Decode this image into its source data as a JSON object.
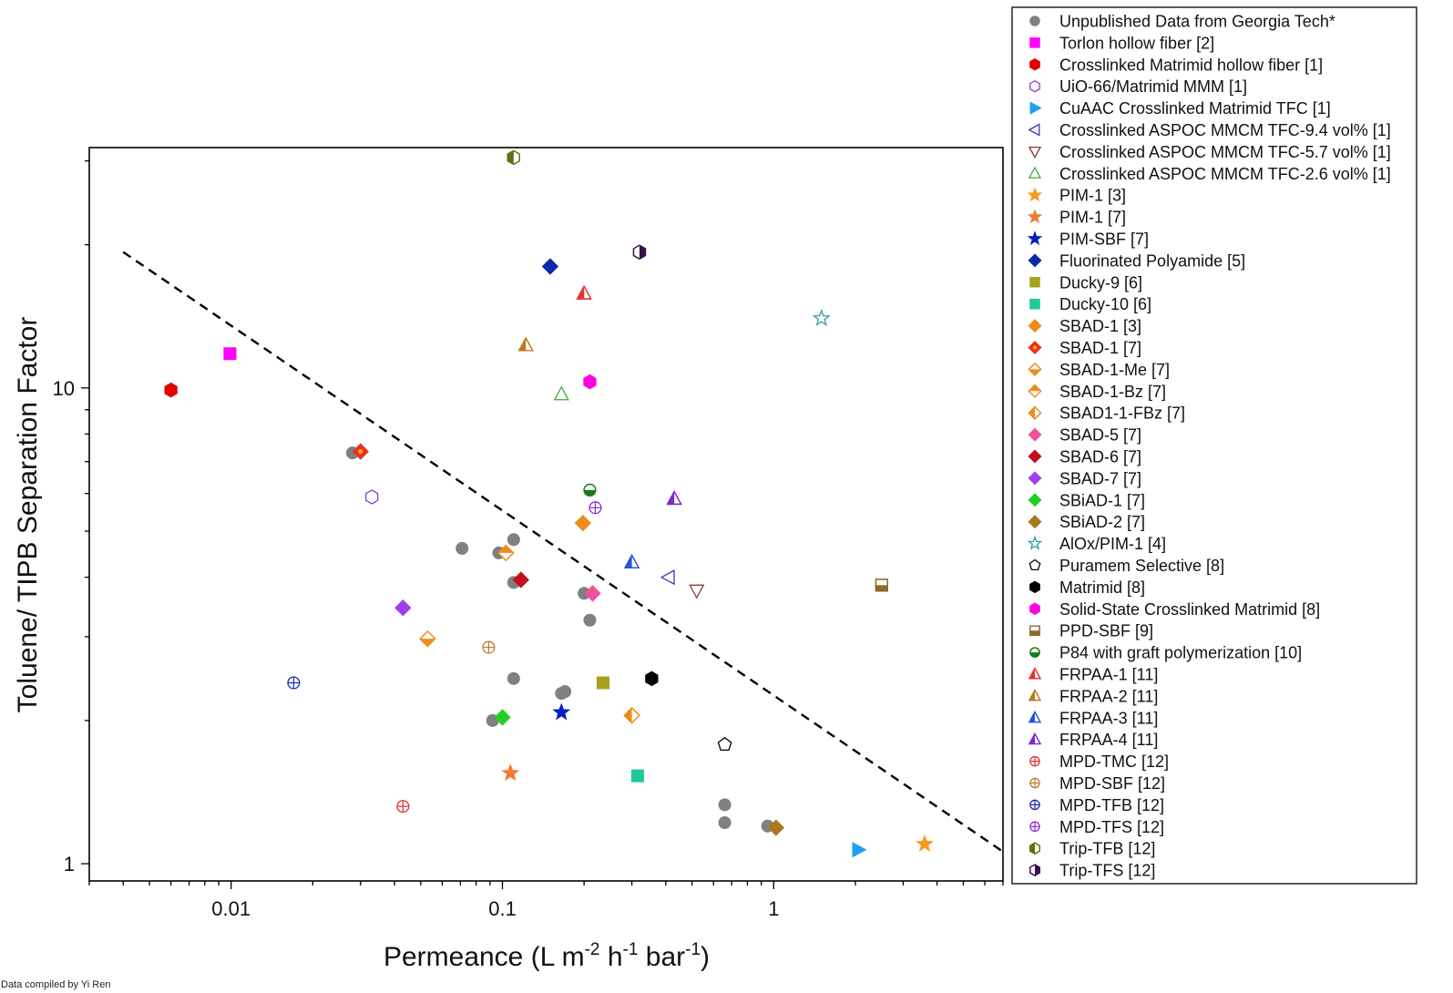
{
  "chart_data": {
    "type": "scatter",
    "xscale": "log",
    "yscale": "log",
    "xlim": [
      0.003,
      7
    ],
    "ylim": [
      0.92,
      32
    ],
    "ylabel": "Toluene/ TIPB Separation Factor",
    "xlabel": {
      "parts": [
        "Permeance (L m",
        "-2",
        " h",
        "-1",
        " bar",
        "-1",
        ")"
      ]
    },
    "xticks": [
      {
        "value": 0.01,
        "label": "0.01"
      },
      {
        "value": 0.1,
        "label": "0.1"
      },
      {
        "value": 1,
        "label": "1"
      }
    ],
    "yticks": [
      {
        "value": 1,
        "label": "1"
      },
      {
        "value": 10,
        "label": "10"
      }
    ],
    "trendline": {
      "style": "dashed",
      "points": [
        [
          0.004,
          19.3
        ],
        [
          7,
          1.06
        ]
      ]
    },
    "credit": "Data compiled by Yi Ren",
    "series": [
      {
        "name": "Unpublished Data from Georgia Tech*",
        "marker": "circle",
        "fill": "full",
        "color": "#808080",
        "points": [
          [
            0.028,
            7.3
          ],
          [
            0.071,
            4.6
          ],
          [
            0.097,
            4.5
          ],
          [
            0.11,
            4.8
          ],
          [
            0.11,
            3.9
          ],
          [
            0.11,
            2.45
          ],
          [
            0.092,
            2.0
          ],
          [
            0.165,
            2.28
          ],
          [
            0.17,
            2.3
          ],
          [
            0.2,
            3.7
          ],
          [
            0.21,
            3.25
          ],
          [
            0.66,
            1.33
          ],
          [
            0.66,
            1.22
          ],
          [
            0.95,
            1.2
          ]
        ]
      },
      {
        "name": "Torlon hollow fiber [2]",
        "marker": "square",
        "fill": "full",
        "color": "#ff00ff",
        "points": [
          [
            0.0099,
            11.8
          ]
        ]
      },
      {
        "name": "Crosslinked Matrimid hollow fiber [1]",
        "marker": "hexagon",
        "fill": "full",
        "color": "#e50000",
        "points": [
          [
            0.006,
            9.9
          ]
        ]
      },
      {
        "name": "UiO-66/Matrimid MMM [1]",
        "marker": "hexagon",
        "fill": "none",
        "color": "#8b3fd1",
        "points": [
          [
            0.033,
            5.9
          ]
        ]
      },
      {
        "name": "CuAAC Crosslinked Matrimid TFC [1]",
        "marker": "triangle-right",
        "fill": "full",
        "color": "#1e9ff2",
        "points": [
          [
            2.05,
            1.07
          ]
        ]
      },
      {
        "name": "Crosslinked ASPOC MMCM TFC-9.4 vol% [1]",
        "marker": "triangle-left",
        "fill": "none",
        "color": "#3f35b5",
        "points": [
          [
            0.41,
            4.0
          ]
        ]
      },
      {
        "name": "Crosslinked ASPOC MMCM TFC-5.7 vol% [1]",
        "marker": "triangle-down",
        "fill": "none",
        "color": "#8b3a3a",
        "points": [
          [
            0.52,
            3.75
          ]
        ]
      },
      {
        "name": "Crosslinked ASPOC MMCM TFC-2.6 vol% [1]",
        "marker": "triangle-up",
        "fill": "none",
        "color": "#3aaa35",
        "points": [
          [
            0.165,
            9.7
          ]
        ]
      },
      {
        "name": "PIM-1 [3]",
        "marker": "star",
        "fill": "full",
        "color": "#f59a23",
        "points": [
          [
            3.6,
            1.1
          ]
        ]
      },
      {
        "name": "PIM-1 [7]",
        "marker": "star",
        "fill": "full",
        "color": "#f07a30",
        "points": [
          [
            0.107,
            1.55
          ]
        ]
      },
      {
        "name": "PIM-SBF [7]",
        "marker": "star",
        "fill": "full",
        "color": "#0b1fbf",
        "points": [
          [
            0.165,
            2.08
          ]
        ]
      },
      {
        "name": "Fluorinated Polyamide [5]",
        "marker": "diamond",
        "fill": "full",
        "color": "#0a2aa8",
        "points": [
          [
            0.15,
            18.0
          ]
        ]
      },
      {
        "name": "Ducky-9 [6]",
        "marker": "square",
        "fill": "full",
        "color": "#a8a020",
        "points": [
          [
            0.235,
            2.4
          ]
        ]
      },
      {
        "name": "Ducky-10 [6]",
        "marker": "square",
        "fill": "full",
        "color": "#1fc99a",
        "points": [
          [
            0.315,
            1.53
          ]
        ]
      },
      {
        "name": "SBAD-1 [3]",
        "marker": "diamond",
        "fill": "full",
        "color": "#f08a1c",
        "points": [
          [
            0.198,
            5.2
          ]
        ]
      },
      {
        "name": "SBAD-1 [7]",
        "marker": "diamond",
        "fill": "dot",
        "color": "#e8321c",
        "accent": "#f5a623",
        "points": [
          [
            0.03,
            7.35
          ]
        ]
      },
      {
        "name": "SBAD-1-Me [7]",
        "marker": "diamond",
        "fill": "bottom",
        "color": "#f08a1c",
        "points": [
          [
            0.053,
            2.97
          ]
        ]
      },
      {
        "name": "SBAD-1-Bz [7]",
        "marker": "diamond",
        "fill": "top",
        "color": "#f08a1c",
        "points": [
          [
            0.103,
            4.5
          ]
        ]
      },
      {
        "name": "SBAD1-1-FBz [7]",
        "marker": "diamond",
        "fill": "left",
        "color": "#f08a1c",
        "points": [
          [
            0.3,
            2.05
          ]
        ]
      },
      {
        "name": "SBAD-5 [7]",
        "marker": "diamond",
        "fill": "full",
        "color": "#f0509a",
        "points": [
          [
            0.215,
            3.7
          ]
        ]
      },
      {
        "name": "SBAD-6 [7]",
        "marker": "diamond",
        "fill": "full",
        "color": "#c0101a",
        "points": [
          [
            0.117,
            3.95
          ]
        ]
      },
      {
        "name": "SBAD-7 [7]",
        "marker": "diamond",
        "fill": "full",
        "color": "#9c3ff0",
        "points": [
          [
            0.043,
            3.45
          ]
        ]
      },
      {
        "name": "SBiAD-1 [7]",
        "marker": "diamond",
        "fill": "full",
        "color": "#22d022",
        "points": [
          [
            0.1,
            2.03
          ]
        ]
      },
      {
        "name": "SBiAD-2 [7]",
        "marker": "diamond",
        "fill": "full",
        "color": "#a87a1c",
        "points": [
          [
            1.02,
            1.19
          ]
        ]
      },
      {
        "name": "AlOx/PIM-1 [4]",
        "marker": "star",
        "fill": "none",
        "color": "#2aa0a0",
        "points": [
          [
            1.5,
            14.0
          ]
        ]
      },
      {
        "name": "Puramem Selective [8]",
        "marker": "pentagon",
        "fill": "none",
        "color": "#000000",
        "points": [
          [
            0.66,
            1.78
          ]
        ]
      },
      {
        "name": "Matrimid [8]",
        "marker": "hexagon",
        "fill": "full",
        "color": "#000000",
        "points": [
          [
            0.355,
            2.45
          ]
        ]
      },
      {
        "name": "Solid-State Crosslinked Matrimid [8]",
        "marker": "hexagon",
        "fill": "full",
        "color": "#ff00e0",
        "points": [
          [
            0.21,
            10.3
          ]
        ]
      },
      {
        "name": "PPD-SBF [9]",
        "marker": "square",
        "fill": "bottom",
        "color": "#8b6a2a",
        "points": [
          [
            2.5,
            3.85
          ]
        ]
      },
      {
        "name": "P84 with graft polymerization [10]",
        "marker": "circle",
        "fill": "bottom",
        "color": "#1a7a1a",
        "points": [
          [
            0.21,
            6.1
          ]
        ]
      },
      {
        "name": "FRPAA-1 [11]",
        "marker": "triangle-up",
        "fill": "left",
        "color": "#e83030",
        "points": [
          [
            0.2,
            15.8
          ]
        ]
      },
      {
        "name": "FRPAA-2 [11]",
        "marker": "triangle-up",
        "fill": "left",
        "color": "#c0781c",
        "points": [
          [
            0.122,
            12.3
          ]
        ]
      },
      {
        "name": "FRPAA-3 [11]",
        "marker": "triangle-up",
        "fill": "left",
        "color": "#2a50e0",
        "points": [
          [
            0.3,
            4.3
          ]
        ]
      },
      {
        "name": "FRPAA-4 [11]",
        "marker": "triangle-up",
        "fill": "left",
        "color": "#7a2ad0",
        "points": [
          [
            0.43,
            5.85
          ]
        ]
      },
      {
        "name": "MPD-TMC [12]",
        "marker": "circle",
        "fill": "cross",
        "color": "#e03030",
        "points": [
          [
            0.043,
            1.32
          ]
        ]
      },
      {
        "name": "MPD-SBF [12]",
        "marker": "circle",
        "fill": "cross",
        "color": "#c07a30",
        "points": [
          [
            0.089,
            2.85
          ]
        ]
      },
      {
        "name": "MPD-TFB [12]",
        "marker": "circle",
        "fill": "cross",
        "color": "#1a2ab0",
        "points": [
          [
            0.017,
            2.4
          ]
        ]
      },
      {
        "name": "MPD-TFS [12]",
        "marker": "circle",
        "fill": "cross",
        "color": "#8a2ad0",
        "points": [
          [
            0.22,
            5.6
          ]
        ]
      },
      {
        "name": "Trip-TFB [12]",
        "marker": "hexagon",
        "fill": "left",
        "color": "#6a6a10",
        "points": [
          [
            0.11,
            30.5
          ]
        ]
      },
      {
        "name": "Trip-TFS [12]",
        "marker": "hexagon",
        "fill": "right",
        "color": "#3a1050",
        "points": [
          [
            0.32,
            19.3
          ]
        ]
      }
    ]
  }
}
